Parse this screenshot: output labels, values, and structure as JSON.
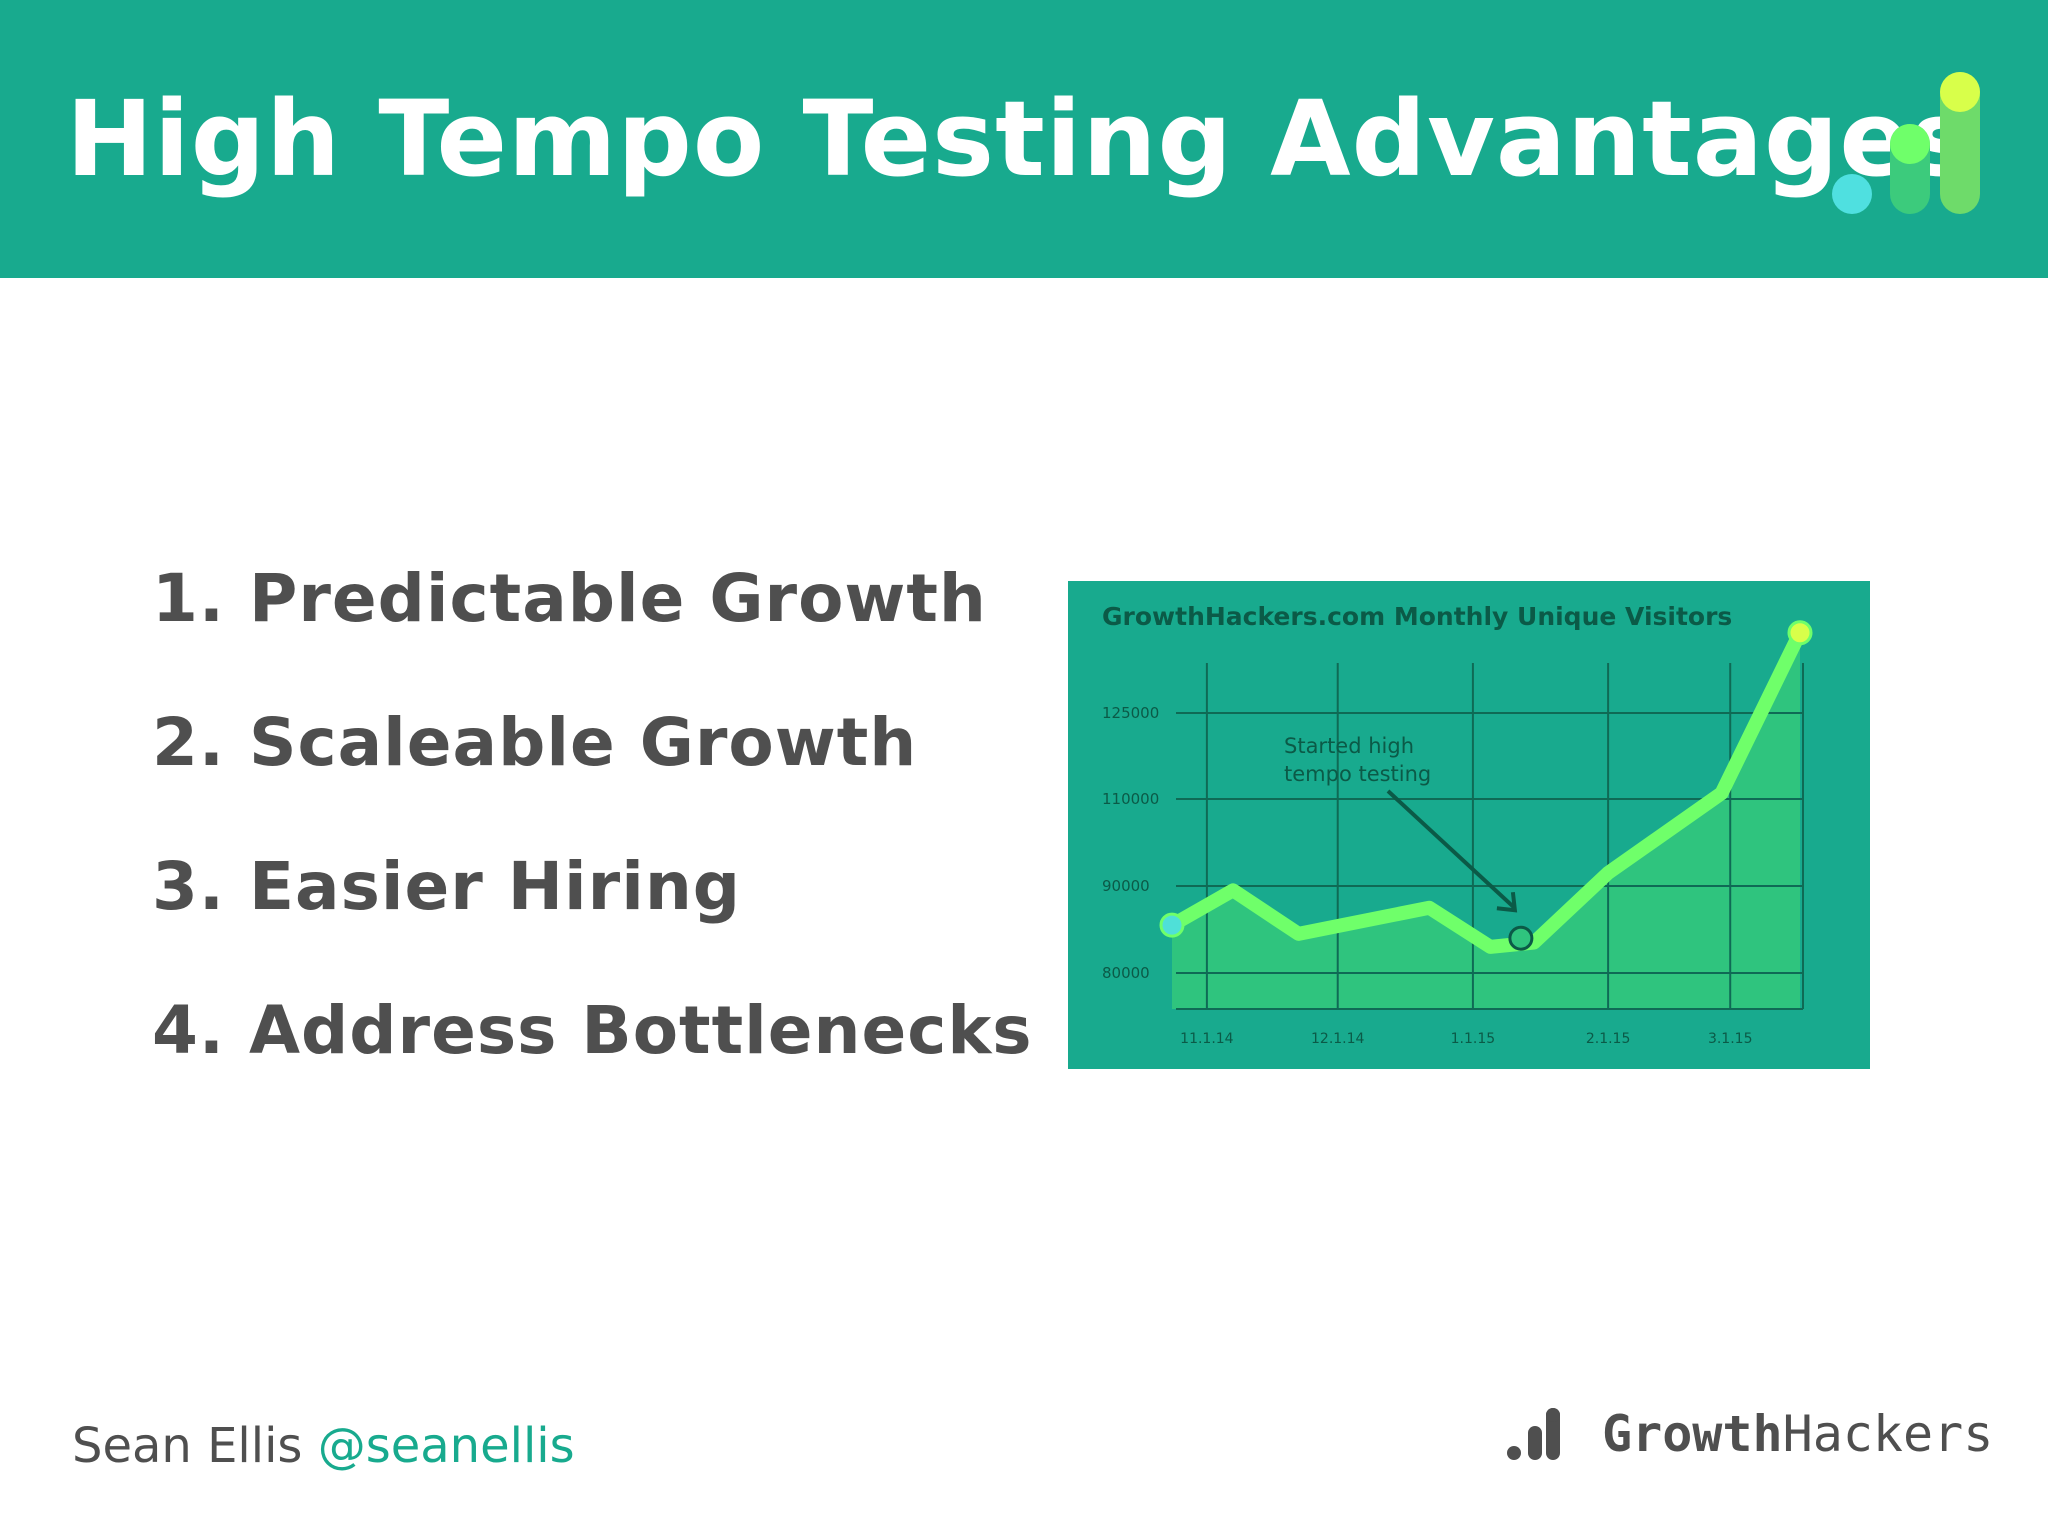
{
  "header": {
    "title": "High Tempo Testing Advantages",
    "logo_icon": "growth-bars-icon"
  },
  "list": {
    "items": [
      "1. Predictable Growth",
      "2. Scaleable Growth",
      "3. Easier Hiring",
      "4. Address Bottlenecks"
    ]
  },
  "chart_data": {
    "type": "area",
    "title": "GrowthHackers.com Monthly Unique Visitors",
    "x_ticks": [
      "11.1.14",
      "12.1.14",
      "1.1.15",
      "2.1.15",
      "3.1.15"
    ],
    "y_ticks": [
      80000,
      90000,
      110000,
      125000
    ],
    "series": [
      {
        "points": [
          {
            "x": "10.24.14",
            "y": 85500
          },
          {
            "x": "11.7.14",
            "y": 89500
          },
          {
            "x": "11.22.14",
            "y": 84500
          },
          {
            "x": "12.22.14",
            "y": 87500
          },
          {
            "x": "1.5.15",
            "y": 83000
          },
          {
            "x": "1.15.15",
            "y": 83500
          },
          {
            "x": "2.1.15",
            "y": 93000
          },
          {
            "x": "2.27.15",
            "y": 111000
          },
          {
            "x": "3.17.15",
            "y": 139000
          }
        ]
      }
    ],
    "annotation": {
      "text_lines": [
        "Started high",
        "tempo testing"
      ],
      "x": "1.12.15",
      "y": 84000
    },
    "grid": true,
    "colors": {
      "background": "#18aa8e",
      "grid": "#0f6a55",
      "line": "#6fff6a",
      "area": "#2fc47e",
      "start_marker": "#4fe0d8",
      "mid_marker": "#2fc47e",
      "end_marker": "#d8ff4a",
      "text": "#0b5a47"
    }
  },
  "footer": {
    "name": "Sean Ellis",
    "handle": "@seanellis",
    "brand_part1": "Growth",
    "brand_part2": "Hackers",
    "logo_icon": "growthhackers-logo-icon"
  },
  "colors": {
    "brand": "#18aa8e",
    "text_dark": "#4f4f4f"
  }
}
